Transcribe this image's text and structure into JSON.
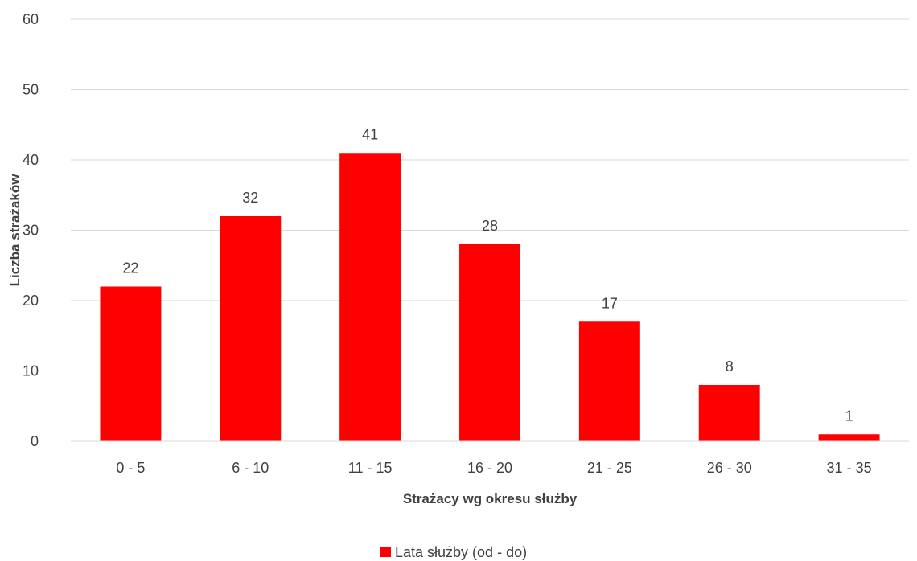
{
  "chart_data": {
    "type": "bar",
    "categories": [
      "0 - 5",
      "6 - 10",
      "11 - 15",
      "16 - 20",
      "21 - 25",
      "26 - 30",
      "31 - 35"
    ],
    "series": [
      {
        "name": "Lata służby (od - do)",
        "values": [
          22,
          32,
          41,
          28,
          17,
          8,
          1
        ],
        "color": "#ff0000"
      }
    ],
    "xlabel": "Strażacy wg okresu służby",
    "ylabel": "Liczba strażaków",
    "ylim": [
      0,
      60
    ],
    "yticks": [
      0,
      10,
      20,
      30,
      40,
      50,
      60
    ],
    "grid": true,
    "legend": "bottom",
    "data_labels": true
  }
}
